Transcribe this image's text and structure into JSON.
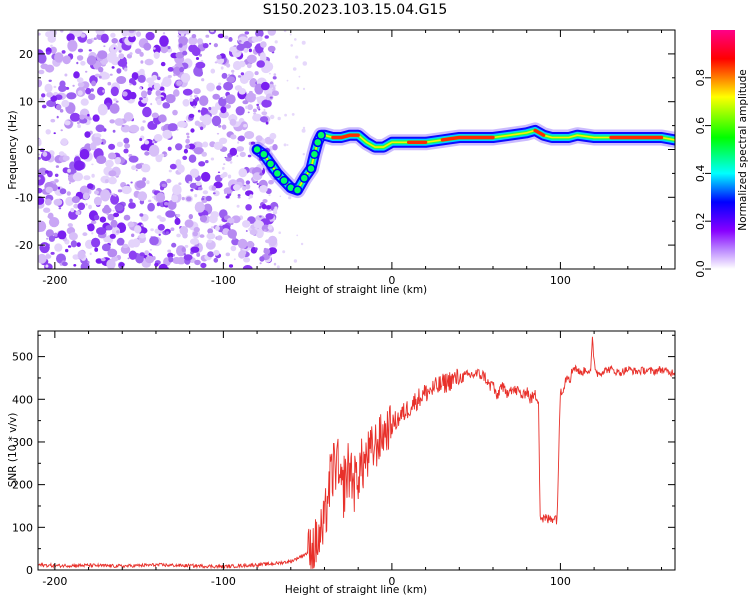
{
  "title": "S150.2023.103.15.04.G15",
  "chart_data": [
    {
      "type": "heatmap",
      "xlabel": "Height of straight line (km)",
      "ylabel": "Frequency (Hz)",
      "xlim": [
        -210,
        168
      ],
      "ylim": [
        -25,
        25
      ],
      "xticks": [
        -200,
        -100,
        0,
        100
      ],
      "yticks": [
        -20,
        -10,
        0,
        10,
        20
      ],
      "colorbar": {
        "label": "Normalized spectral amplitude",
        "range": [
          0,
          1
        ],
        "ticks": [
          "0.0",
          "0.2",
          "0.4",
          "0.6",
          "0.8"
        ],
        "colors": [
          "#ffffff",
          "#8800ff",
          "#0000ff",
          "#00ffff",
          "#00ff00",
          "#ffff00",
          "#ff0000",
          "#ff0088"
        ]
      },
      "noise_region": {
        "x_from": -210,
        "x_to": -75,
        "color": "#8a2be2"
      },
      "ridge": {
        "x": [
          -80,
          -76,
          -72,
          -68,
          -64,
          -60,
          -56,
          -52,
          -48,
          -46,
          -44,
          -42,
          -40,
          -35,
          -30,
          -25,
          -20,
          -15,
          -10,
          -5,
          0,
          10,
          20,
          30,
          40,
          50,
          60,
          70,
          80,
          85,
          90,
          95,
          100,
          105,
          110,
          120,
          130,
          140,
          150,
          160,
          168
        ],
        "y": [
          0,
          -1,
          -3,
          -5,
          -6.5,
          -8,
          -8.5,
          -6,
          -4,
          -1,
          1.5,
          3,
          3,
          2.5,
          2.5,
          3,
          3,
          1.5,
          0.5,
          0.5,
          1.5,
          1.5,
          1.5,
          2,
          2.5,
          2.5,
          2.5,
          3,
          3.5,
          4,
          3,
          2.5,
          2.5,
          2.5,
          3,
          2.5,
          2.5,
          2.5,
          2.5,
          2.5,
          2
        ]
      }
    },
    {
      "type": "line",
      "xlabel": "Height of straight line (km)",
      "ylabel": "SNR (10 * v/v)",
      "xlim": [
        -210,
        168
      ],
      "ylim": [
        0,
        560
      ],
      "xticks": [
        -200,
        -100,
        0,
        100
      ],
      "yticks": [
        0,
        100,
        200,
        300,
        400,
        500
      ],
      "series": [
        {
          "color": "#e8302a",
          "x": [
            -210,
            -200,
            -180,
            -160,
            -140,
            -120,
            -100,
            -80,
            -70,
            -60,
            -55,
            -50,
            -45,
            -40,
            -38,
            -35,
            -33,
            -30,
            -28,
            -25,
            -22,
            -20,
            -15,
            -10,
            -5,
            0,
            5,
            10,
            15,
            20,
            25,
            30,
            35,
            40,
            45,
            50,
            55,
            58,
            60,
            62,
            65,
            68,
            70,
            72,
            75,
            78,
            80,
            82,
            85,
            87,
            88,
            90,
            93,
            96,
            98,
            100,
            102,
            104,
            106,
            108,
            110,
            112,
            115,
            118,
            119,
            120,
            121,
            122,
            125,
            128,
            130,
            135,
            140,
            145,
            150,
            155,
            160,
            165,
            168
          ],
          "y": [
            12,
            10,
            11,
            9,
            12,
            10,
            8,
            12,
            15,
            20,
            30,
            40,
            60,
            100,
            180,
            230,
            260,
            170,
            210,
            240,
            200,
            230,
            260,
            290,
            320,
            340,
            360,
            380,
            400,
            415,
            425,
            435,
            445,
            450,
            455,
            460,
            455,
            430,
            440,
            400,
            435,
            410,
            430,
            420,
            420,
            405,
            425,
            400,
            410,
            400,
            125,
            120,
            118,
            125,
            120,
            420,
            430,
            460,
            450,
            480,
            470,
            460,
            470,
            465,
            540,
            490,
            470,
            460,
            465,
            470,
            470,
            462,
            470,
            465,
            468,
            465,
            470,
            462,
            465
          ]
        }
      ]
    }
  ]
}
